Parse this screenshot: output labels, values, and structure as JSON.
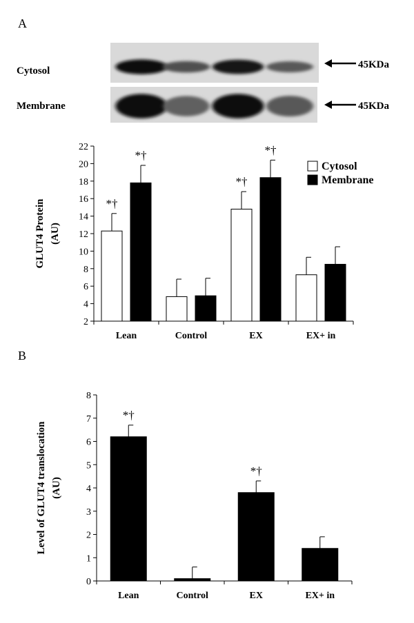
{
  "panels": {
    "a_letter": "A",
    "b_letter": "B"
  },
  "blot": {
    "rows": [
      {
        "label": "Cytosol",
        "marker": "45KDa",
        "band_intensity": [
          0.95,
          0.55,
          0.9,
          0.5
        ]
      },
      {
        "label": "Membrane",
        "marker": "45KDa",
        "band_intensity": [
          0.95,
          0.45,
          0.95,
          0.5
        ]
      }
    ]
  },
  "colors": {
    "cytosol_fill": "#ffffff",
    "membrane_fill": "#000000",
    "axis": "#000000",
    "blot_background": "#d9d9d9"
  },
  "chart_data": [
    {
      "type": "bar",
      "categories": [
        "Lean",
        "Control",
        "EX",
        "EX+ in"
      ],
      "series": [
        {
          "name": "Cytosol",
          "values": [
            12.3,
            4.8,
            14.8,
            7.3
          ],
          "errors": [
            2.0,
            2.0,
            2.0,
            2.0
          ]
        },
        {
          "name": "Membrane",
          "values": [
            17.8,
            4.9,
            18.4,
            8.5
          ],
          "errors": [
            2.0,
            2.0,
            2.0,
            2.0
          ]
        }
      ],
      "annotations": [
        "*†",
        "*†",
        "",
        "",
        "*†",
        "*†",
        "",
        ""
      ],
      "ylabel_lines": [
        "GLUT4 Protein",
        "(AU)"
      ],
      "ylim": [
        2,
        22
      ],
      "yticks": [
        "2",
        "4",
        "6",
        "8",
        "10",
        "12",
        "14",
        "16",
        "18",
        "20",
        "22"
      ],
      "legend_position": "top-right"
    },
    {
      "type": "bar",
      "categories": [
        "Lean",
        "Control",
        "EX",
        "EX+ in"
      ],
      "values": [
        6.2,
        0.1,
        3.8,
        1.4
      ],
      "errors": [
        0.5,
        0.5,
        0.5,
        0.5
      ],
      "annotations": [
        "*†",
        "",
        "*†",
        ""
      ],
      "ylabel_lines": [
        "Level of GLUT4 translocation",
        "(AU)"
      ],
      "ylim": [
        0,
        8
      ],
      "yticks": [
        "0",
        "1",
        "2",
        "3",
        "4",
        "5",
        "6",
        "7",
        "8"
      ]
    }
  ]
}
